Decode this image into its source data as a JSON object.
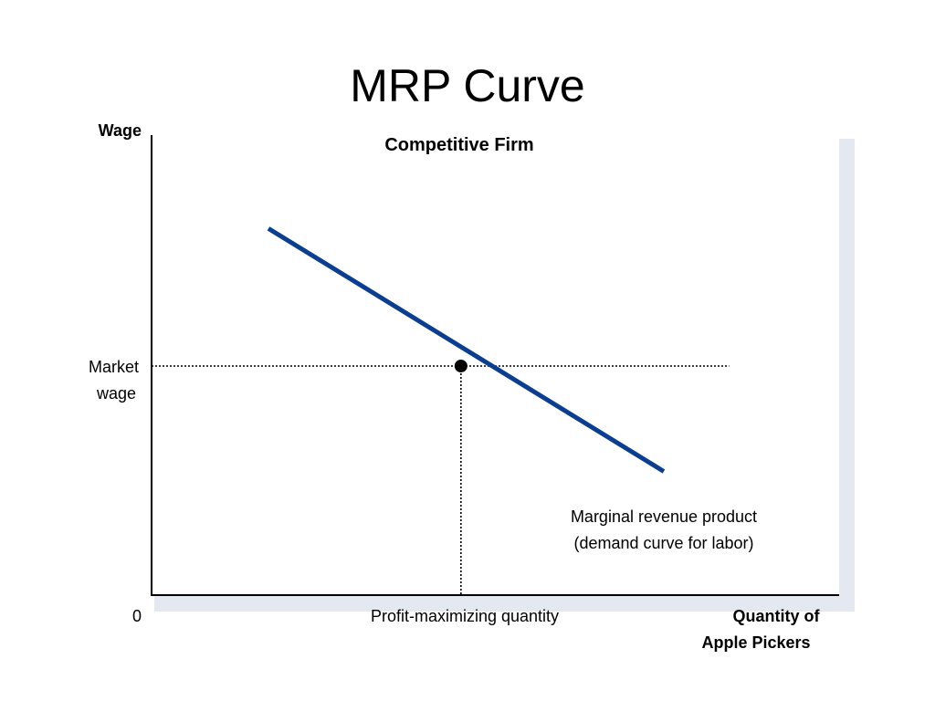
{
  "slide_title": "MRP Curve",
  "chart_data": {
    "type": "line",
    "title": "Competitive Firm",
    "ylabel": "Wage",
    "xlabel_lines": [
      "Quantity of",
      "Apple Pickers"
    ],
    "origin_label": "0",
    "xlim": [
      0,
      10
    ],
    "ylim": [
      0,
      10
    ],
    "series": [
      {
        "name": "Marginal revenue product (demand curve for labor)",
        "label_lines": [
          "Marginal revenue product",
          "(demand curve for labor)"
        ],
        "x": [
          1.7,
          7.45
        ],
        "y": [
          8.0,
          2.7
        ],
        "color": "#0b3d91"
      }
    ],
    "equilibrium": {
      "x": 4.5,
      "y": 5.0,
      "y_label_lines": [
        "Market",
        "wage"
      ],
      "x_label": "Profit-maximizing quantity"
    },
    "market_wage_line_end_x": 8.4,
    "grid": false
  }
}
